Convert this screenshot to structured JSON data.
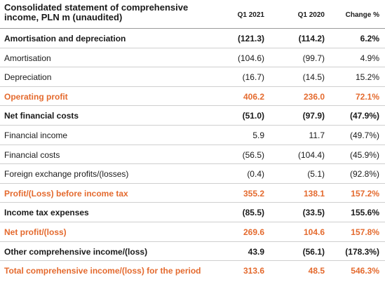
{
  "table": {
    "title_line1": "Consolidated statement of comprehensive",
    "title_line2": "income, PLN m (unaudited)",
    "columns": [
      "Q1 2021",
      "Q1 2020",
      "Change %"
    ],
    "rows": [
      {
        "label": "Amortisation and depreciation",
        "q1_2021": "(121.3)",
        "q1_2020": "(114.2)",
        "change": "6.2%"
      },
      {
        "label": "Amortisation",
        "q1_2021": "(104.6)",
        "q1_2020": "(99.7)",
        "change": "4.9%"
      },
      {
        "label": "Depreciation",
        "q1_2021": "(16.7)",
        "q1_2020": "(14.5)",
        "change": "15.2%"
      },
      {
        "label": "Operating profit",
        "q1_2021": "406.2",
        "q1_2020": "236.0",
        "change": "72.1%"
      },
      {
        "label": "Net financial costs",
        "q1_2021": "(51.0)",
        "q1_2020": "(97.9)",
        "change": "(47.9%)"
      },
      {
        "label": "Financial income",
        "q1_2021": "5.9",
        "q1_2020": "11.7",
        "change": "(49.7%)"
      },
      {
        "label": "Financial costs",
        "q1_2021": "(56.5)",
        "q1_2020": "(104.4)",
        "change": "(45.9%)"
      },
      {
        "label": "Foreign exchange profits/(losses)",
        "q1_2021": "(0.4)",
        "q1_2020": "(5.1)",
        "change": "(92.8%)"
      },
      {
        "label": "Profit/(Loss) before income tax",
        "q1_2021": "355.2",
        "q1_2020": "138.1",
        "change": "157.2%"
      },
      {
        "label": "Income tax expenses",
        "q1_2021": "(85.5)",
        "q1_2020": "(33.5)",
        "change": "155.6%"
      },
      {
        "label": "Net profit/(loss)",
        "q1_2021": "269.6",
        "q1_2020": "104.6",
        "change": "157.8%"
      },
      {
        "label": "Other comprehensive income/(loss)",
        "q1_2021": "43.9",
        "q1_2020": "(56.1)",
        "change": "(178.3%)"
      },
      {
        "label": "Total comprehensive income/(loss) for the period",
        "q1_2021": "313.6",
        "q1_2020": "48.5",
        "change": "546.3%"
      }
    ]
  },
  "colors": {
    "accent": "#e46a2e",
    "text": "#1a1a1a",
    "divider": "#cfcfcf"
  }
}
